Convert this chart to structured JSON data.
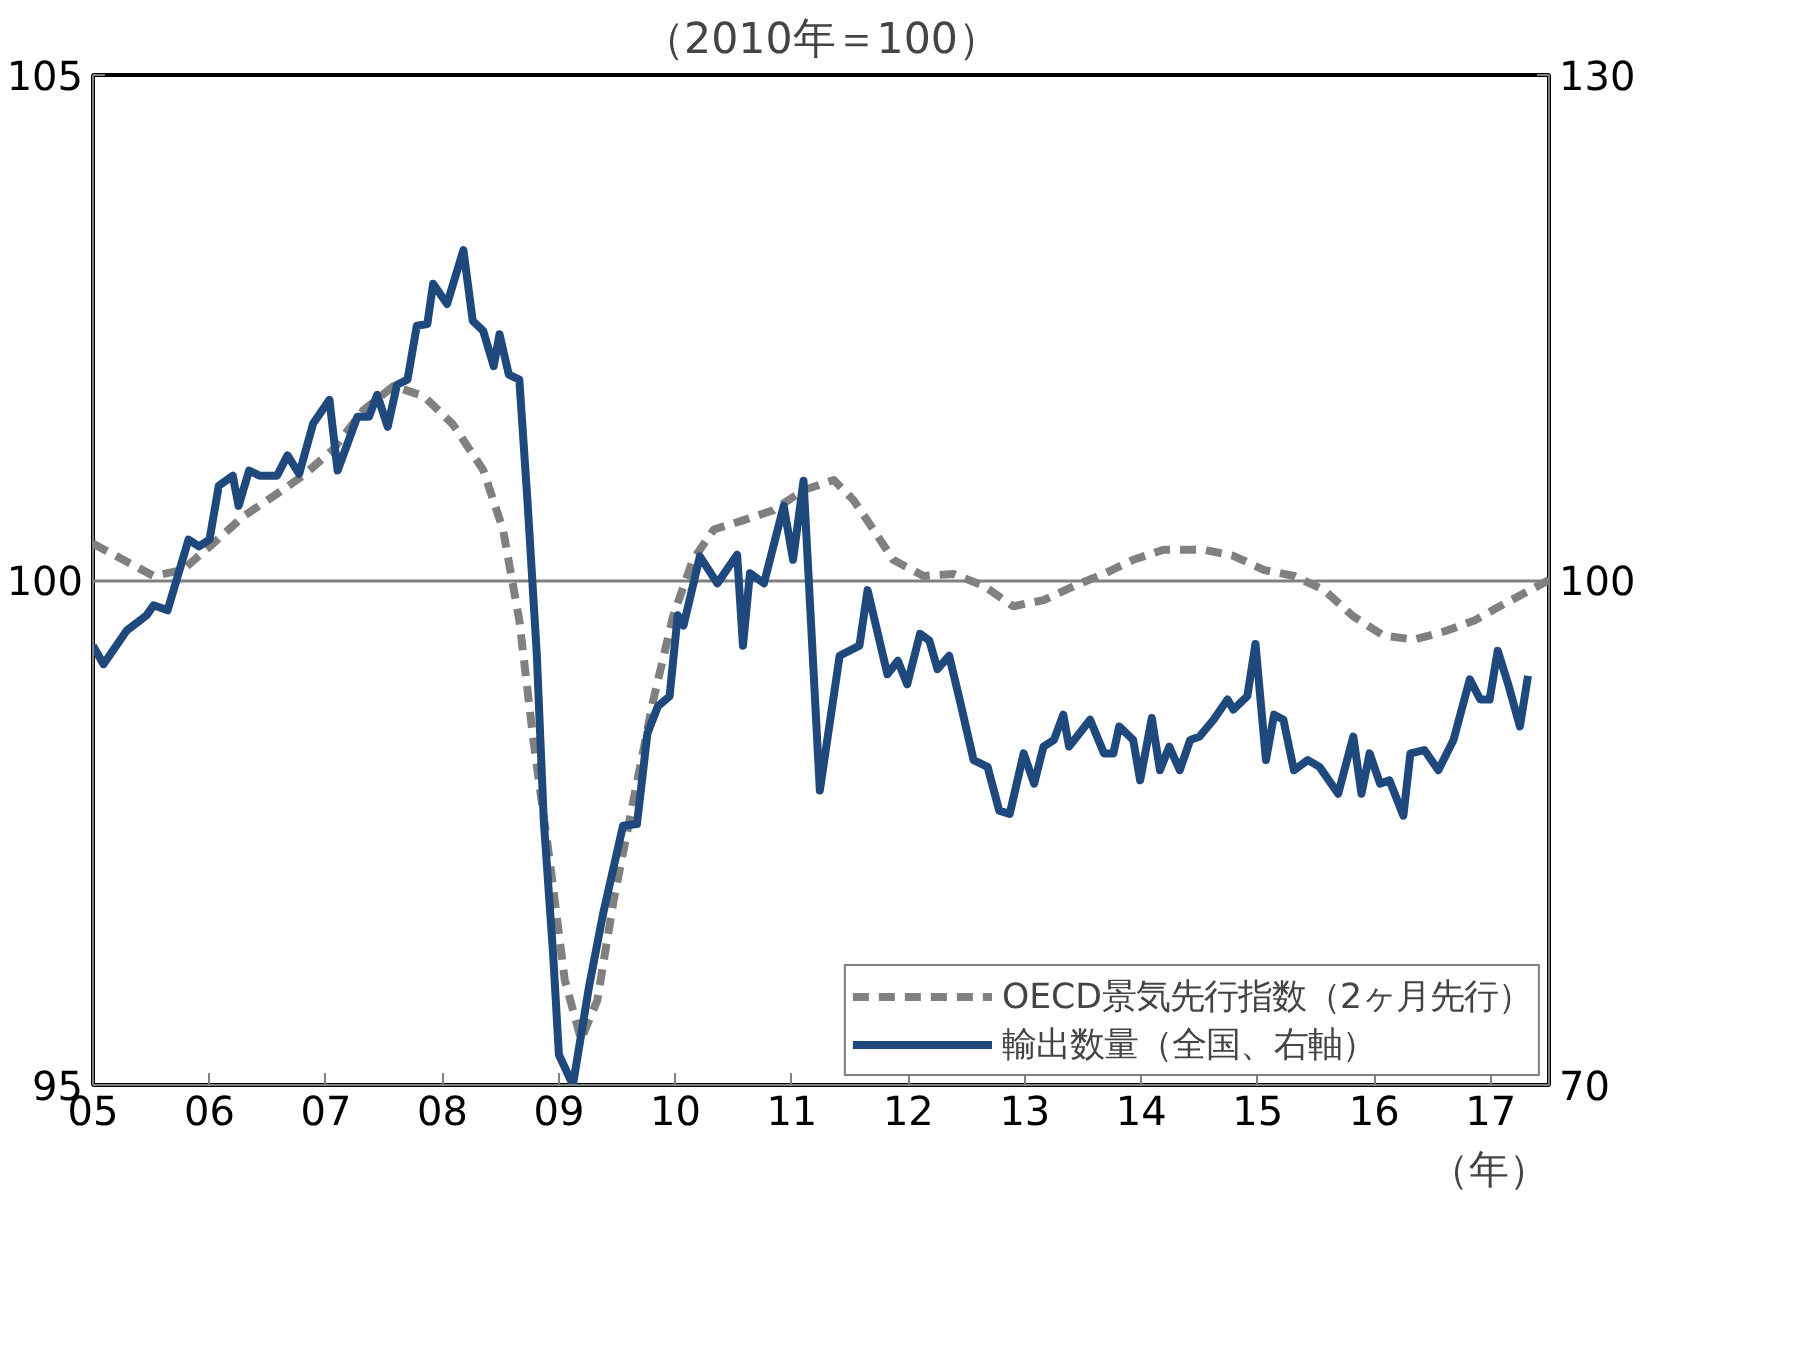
{
  "chart_data": {
    "type": "line",
    "title": "（2010年＝100）",
    "xlim": [
      2005,
      2017.5
    ],
    "xticks": [
      {
        "value": 2005,
        "label": "05"
      },
      {
        "value": 2006,
        "label": "06"
      },
      {
        "value": 2007,
        "label": "07"
      },
      {
        "value": 2008,
        "label": "08"
      },
      {
        "value": 2009,
        "label": "09"
      },
      {
        "value": 2010,
        "label": "10"
      },
      {
        "value": 2011,
        "label": "11"
      },
      {
        "value": 2012,
        "label": "12"
      },
      {
        "value": 2013,
        "label": "13"
      },
      {
        "value": 2014,
        "label": "14"
      },
      {
        "value": 2015,
        "label": "15"
      },
      {
        "value": 2016,
        "label": "16"
      },
      {
        "value": 2017,
        "label": "17"
      }
    ],
    "ylim": [
      95,
      105
    ],
    "yticks": [
      95,
      100,
      105
    ],
    "y2lim": [
      70,
      130
    ],
    "y2ticks": [
      70,
      100,
      130
    ],
    "grid": "y",
    "legend": "bottom",
    "annotations": [
      "（年）"
    ],
    "series": [
      {
        "name": "OECD景気先行指数（2ヶ月先行）",
        "color": "#808080",
        "line_style": "dashed",
        "x": [
          2005.0,
          2005.26,
          2005.52,
          2005.77,
          2006.03,
          2006.29,
          2006.55,
          2006.8,
          2007.06,
          2007.32,
          2007.58,
          2007.84,
          2008.09,
          2008.35,
          2008.52,
          2008.66,
          2008.78,
          2008.92,
          2009.05,
          2009.19,
          2009.33,
          2009.47,
          2009.64,
          2009.81,
          2009.98,
          2010.15,
          2010.33,
          2010.58,
          2010.84,
          2011.1,
          2011.36,
          2011.53,
          2011.7,
          2011.87,
          2012.13,
          2012.39,
          2012.65,
          2012.9,
          2013.16,
          2013.42,
          2013.68,
          2013.93,
          2014.19,
          2014.54,
          2014.79,
          2015.05,
          2015.31,
          2015.57,
          2015.82,
          2016.08,
          2016.34,
          2016.6,
          2016.86,
          2017.11,
          2017.5
        ],
        "values": [
          100.36,
          100.2,
          100.04,
          100.1,
          100.36,
          100.63,
          100.83,
          101.03,
          101.29,
          101.68,
          101.92,
          101.82,
          101.54,
          101.09,
          100.5,
          99.6,
          98.42,
          97.23,
          96.04,
          95.45,
          95.84,
          96.83,
          97.82,
          98.81,
          99.64,
          100.2,
          100.5,
          100.59,
          100.69,
          100.89,
          100.99,
          100.79,
          100.5,
          100.2,
          100.04,
          100.06,
          99.94,
          99.74,
          99.8,
          99.94,
          100.06,
          100.2,
          100.3,
          100.3,
          100.24,
          100.1,
          100.04,
          99.9,
          99.64,
          99.45,
          99.41,
          99.49,
          99.6,
          99.76,
          100.0
        ]
      },
      {
        "name": "輸出数量（全国、右軸）",
        "color": "#1f497d",
        "axis": "y2",
        "line_style": "solid",
        "x": [
          2005.0,
          2005.09,
          2005.29,
          2005.46,
          2005.52,
          2005.64,
          2005.82,
          2005.91,
          2006.0,
          2006.08,
          2006.2,
          2006.25,
          2006.34,
          2006.43,
          2006.58,
          2006.67,
          2006.77,
          2006.89,
          2007.03,
          2007.1,
          2007.27,
          2007.37,
          2007.44,
          2007.53,
          2007.61,
          2007.7,
          2007.78,
          2007.87,
          2007.92,
          2008.04,
          2008.18,
          2008.26,
          2008.35,
          2008.44,
          2008.49,
          2008.57,
          2008.66,
          2008.73,
          2008.81,
          2008.87,
          2008.95,
          2009.0,
          2009.12,
          2009.26,
          2009.38,
          2009.55,
          2009.67,
          2009.76,
          2009.85,
          2009.95,
          2010.02,
          2010.07,
          2010.21,
          2010.36,
          2010.53,
          2010.58,
          2010.64,
          2010.76,
          2010.93,
          2011.01,
          2011.1,
          2011.24,
          2011.41,
          2011.58,
          2011.65,
          2011.82,
          2011.91,
          2011.99,
          2012.1,
          2012.18,
          2012.25,
          2012.35,
          2012.44,
          2012.56,
          2012.68,
          2012.78,
          2012.87,
          2012.99,
          2013.08,
          2013.16,
          2013.25,
          2013.33,
          2013.38,
          2013.56,
          2013.68,
          2013.76,
          2013.81,
          2013.93,
          2013.99,
          2014.09,
          2014.16,
          2014.24,
          2014.33,
          2014.42,
          2014.5,
          2014.62,
          2014.74,
          2014.79,
          2014.91,
          2014.98,
          2015.07,
          2015.14,
          2015.22,
          2015.31,
          2015.43,
          2015.53,
          2015.69,
          2015.82,
          2015.89,
          2015.96,
          2016.05,
          2016.13,
          2016.25,
          2016.31,
          2016.43,
          2016.55,
          2016.68,
          2016.82,
          2016.91,
          2016.99,
          2017.06,
          2017.15,
          2017.25,
          2017.32
        ],
        "values": [
          96.1,
          95.0,
          97.0,
          97.9,
          98.5,
          98.2,
          102.4,
          102.0,
          102.4,
          105.6,
          106.2,
          104.4,
          106.5,
          106.2,
          106.2,
          107.4,
          106.3,
          109.3,
          110.7,
          106.5,
          109.7,
          109.7,
          111.0,
          109.1,
          111.6,
          111.9,
          115.1,
          115.2,
          117.6,
          116.4,
          119.6,
          115.4,
          114.8,
          112.7,
          114.6,
          112.2,
          111.9,
          104.7,
          95.6,
          85.7,
          77.8,
          71.8,
          70.0,
          75.9,
          80.2,
          85.4,
          85.5,
          90.9,
          92.5,
          93.1,
          97.9,
          97.3,
          101.4,
          99.8,
          101.5,
          96.1,
          100.4,
          99.8,
          104.4,
          101.2,
          105.9,
          87.5,
          95.5,
          96.1,
          99.4,
          94.4,
          95.2,
          93.8,
          96.8,
          96.4,
          94.7,
          95.5,
          92.9,
          89.3,
          88.9,
          86.3,
          86.1,
          89.7,
          87.9,
          90.1,
          90.5,
          92.0,
          90.1,
          91.7,
          89.7,
          89.7,
          91.3,
          90.5,
          88.1,
          91.8,
          88.7,
          90.1,
          88.7,
          90.5,
          90.7,
          91.7,
          92.9,
          92.3,
          93.1,
          96.2,
          89.3,
          92.0,
          91.7,
          88.7,
          89.3,
          88.9,
          87.3,
          90.7,
          87.3,
          89.7,
          87.9,
          88.1,
          86.0,
          89.7,
          89.9,
          88.7,
          90.5,
          94.1,
          92.9,
          92.9,
          95.8,
          93.8,
          91.3,
          94.3
        ]
      }
    ]
  }
}
